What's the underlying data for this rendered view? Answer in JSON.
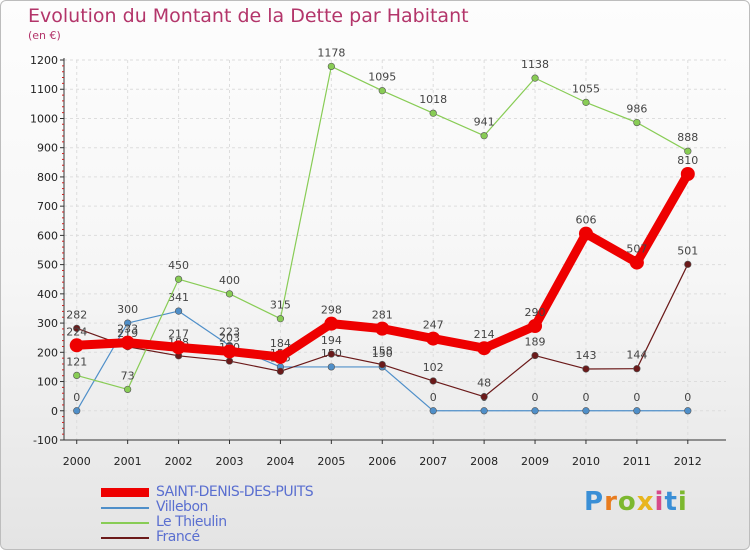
{
  "header": {
    "title": "Evolution du Montant de la Dette par Habitant",
    "subtitle": "(en €)"
  },
  "logo": {
    "text": "Proxiti",
    "colors": [
      "#3a8fd6",
      "#e87c1e",
      "#7cb82f",
      "#e8b51e",
      "#d64a8a",
      "#3a8fd6",
      "#7cb82f"
    ]
  },
  "chart_data": {
    "type": "line",
    "title": "Evolution du Montant de la Dette par Habitant",
    "subtitle": "(en €)",
    "xlabel": "",
    "ylabel": "",
    "categories": [
      "2000",
      "2001",
      "2002",
      "2003",
      "2004",
      "2005",
      "2006",
      "2007",
      "2008",
      "2009",
      "2010",
      "2011",
      "2012"
    ],
    "ylim": [
      -100,
      1200
    ],
    "yticks": [
      -100,
      0,
      100,
      200,
      300,
      400,
      500,
      600,
      700,
      800,
      900,
      1000,
      1100,
      1200
    ],
    "grid": true,
    "legend_position": "bottom-left",
    "series": [
      {
        "name": "SAINT-DENIS-DES-PUITS",
        "color": "#ee0000",
        "values": [
          224,
          233,
          217,
          203,
          184,
          298,
          281,
          247,
          214,
          290,
          606,
          507,
          810
        ]
      },
      {
        "name": "Villebon",
        "color": "#4f8fc9",
        "values": [
          0,
          300,
          341,
          223,
          150,
          150,
          150,
          0,
          0,
          0,
          0,
          0,
          0
        ]
      },
      {
        "name": "Le Thieulin",
        "color": "#88cc55",
        "values": [
          121,
          73,
          450,
          400,
          315,
          1178,
          1095,
          1018,
          941,
          1138,
          1055,
          986,
          888
        ]
      },
      {
        "name": "Francé",
        "color": "#6b1a1a",
        "values": [
          282,
          219,
          188,
          170,
          135,
          194,
          158,
          102,
          48,
          189,
          143,
          144,
          501
        ]
      }
    ]
  }
}
